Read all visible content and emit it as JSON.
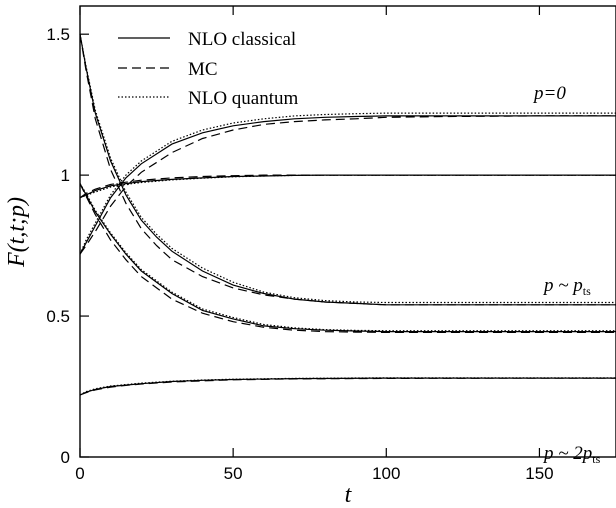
{
  "chart_data": {
    "type": "line",
    "title": "",
    "xlabel": "t",
    "ylabel": "F(t,t;p)",
    "xlim": [
      0,
      175
    ],
    "ylim": [
      0,
      1.6
    ],
    "x_ticks": [
      0,
      50,
      100,
      150
    ],
    "y_ticks": [
      0,
      0.5,
      1,
      1.5
    ],
    "x_tick_labels": [
      "0",
      "50",
      "100",
      "150"
    ],
    "y_tick_labels": [
      "0",
      "0.5",
      "1",
      "1.5"
    ],
    "legend_position": "top-left",
    "legend": [
      {
        "label": "NLO classical",
        "style": "solid"
      },
      {
        "label": "MC",
        "style": "dashed"
      },
      {
        "label": "NLO quantum",
        "style": "dotted"
      }
    ],
    "annotations": [
      {
        "text": "p=0",
        "x": 165,
        "y": 1.28
      },
      {
        "text": "p ~ p",
        "subscript": "ts",
        "x": 160,
        "y": 0.6
      },
      {
        "text": "p ~ 2p",
        "subscript": "ts",
        "x": 160,
        "y": 0.16
      }
    ],
    "series": [
      {
        "name": "NLO classical",
        "style": "solid",
        "curves": [
          {
            "x": [
              0,
              2,
              5,
              10,
              15,
              20,
              30,
              40,
              50,
              60,
              70,
              80,
              90,
              100,
              120,
              150,
              175
            ],
            "y": [
              0.72,
              0.76,
              0.82,
              0.92,
              0.99,
              1.04,
              1.11,
              1.15,
              1.175,
              1.19,
              1.2,
              1.205,
              1.208,
              1.21,
              1.21,
              1.21,
              1.21
            ]
          },
          {
            "x": [
              0,
              2,
              5,
              10,
              15,
              20,
              30,
              40,
              50,
              60,
              70,
              80,
              100,
              120,
              150,
              175
            ],
            "y": [
              0.92,
              0.93,
              0.945,
              0.962,
              0.97,
              0.977,
              0.985,
              0.99,
              0.995,
              0.997,
              0.999,
              1.0,
              1.0,
              1.0,
              1.0,
              1.0
            ]
          },
          {
            "x": [
              0,
              2,
              5,
              10,
              15,
              20,
              25,
              30,
              40,
              50,
              60,
              70,
              80,
              90,
              100,
              120,
              150,
              175
            ],
            "y": [
              1.5,
              1.38,
              1.22,
              1.05,
              0.93,
              0.84,
              0.78,
              0.73,
              0.66,
              0.61,
              0.58,
              0.56,
              0.55,
              0.545,
              0.54,
              0.54,
              0.54,
              0.54
            ]
          },
          {
            "x": [
              0,
              2,
              5,
              10,
              15,
              20,
              30,
              40,
              50,
              60,
              70,
              80,
              90,
              100,
              120,
              150,
              175
            ],
            "y": [
              0.97,
              0.93,
              0.87,
              0.79,
              0.72,
              0.66,
              0.58,
              0.52,
              0.49,
              0.465,
              0.455,
              0.45,
              0.447,
              0.445,
              0.445,
              0.445,
              0.445
            ]
          },
          {
            "x": [
              0,
              2,
              5,
              10,
              15,
              20,
              30,
              40,
              50,
              70,
              100,
              150,
              175
            ],
            "y": [
              0.22,
              0.23,
              0.24,
              0.25,
              0.255,
              0.26,
              0.268,
              0.272,
              0.275,
              0.278,
              0.28,
              0.28,
              0.28
            ]
          }
        ]
      },
      {
        "name": "MC",
        "style": "dashed",
        "curves": [
          {
            "x": [
              0,
              2,
              5,
              10,
              15,
              20,
              30,
              40,
              50,
              60,
              70,
              80,
              90,
              100,
              120,
              150,
              175
            ],
            "y": [
              0.72,
              0.75,
              0.8,
              0.89,
              0.96,
              1.01,
              1.08,
              1.13,
              1.16,
              1.18,
              1.19,
              1.196,
              1.2,
              1.205,
              1.208,
              1.21,
              1.21
            ]
          },
          {
            "x": [
              0,
              2,
              5,
              10,
              15,
              20,
              30,
              40,
              50,
              60,
              70,
              80,
              100,
              120,
              150,
              175
            ],
            "y": [
              0.92,
              0.935,
              0.95,
              0.967,
              0.975,
              0.982,
              0.99,
              0.995,
              0.998,
              1.0,
              1.0,
              1.0,
              1.0,
              1.0,
              1.0,
              1.0
            ]
          },
          {
            "x": [
              0,
              2,
              5,
              10,
              15,
              20,
              25,
              30,
              40,
              50,
              60,
              70,
              80,
              90,
              100,
              120,
              150,
              175
            ],
            "y": [
              1.5,
              1.37,
              1.2,
              1.02,
              0.9,
              0.81,
              0.75,
              0.7,
              0.64,
              0.6,
              0.575,
              0.56,
              0.55,
              0.545,
              0.54,
              0.54,
              0.54,
              0.54
            ]
          },
          {
            "x": [
              0,
              2,
              5,
              10,
              15,
              20,
              30,
              40,
              50,
              60,
              70,
              80,
              90,
              100,
              120,
              150,
              175
            ],
            "y": [
              0.97,
              0.925,
              0.86,
              0.77,
              0.7,
              0.64,
              0.56,
              0.51,
              0.48,
              0.46,
              0.45,
              0.445,
              0.443,
              0.442,
              0.442,
              0.442,
              0.442
            ]
          },
          {
            "x": [
              0,
              2,
              5,
              10,
              15,
              20,
              30,
              40,
              50,
              70,
              100,
              150,
              175
            ],
            "y": [
              0.22,
              0.228,
              0.238,
              0.248,
              0.254,
              0.259,
              0.266,
              0.27,
              0.274,
              0.277,
              0.279,
              0.28,
              0.28
            ]
          }
        ]
      },
      {
        "name": "NLO quantum",
        "style": "dotted",
        "curves": [
          {
            "x": [
              0,
              2,
              5,
              10,
              15,
              20,
              30,
              40,
              50,
              60,
              70,
              80,
              90,
              100,
              120,
              150,
              175
            ],
            "y": [
              0.72,
              0.77,
              0.83,
              0.93,
              1.0,
              1.05,
              1.12,
              1.16,
              1.185,
              1.2,
              1.21,
              1.215,
              1.218,
              1.22,
              1.22,
              1.22,
              1.22
            ]
          },
          {
            "x": [
              0,
              2,
              5,
              10,
              15,
              20,
              30,
              40,
              50,
              60,
              70,
              80,
              100,
              120,
              150,
              175
            ],
            "y": [
              0.92,
              0.928,
              0.94,
              0.958,
              0.967,
              0.974,
              0.983,
              0.989,
              0.994,
              0.997,
              0.999,
              1.0,
              1.0,
              1.0,
              1.0,
              1.0
            ]
          },
          {
            "x": [
              0,
              2,
              5,
              10,
              15,
              20,
              25,
              30,
              40,
              50,
              60,
              70,
              80,
              90,
              100,
              120,
              150,
              175
            ],
            "y": [
              1.5,
              1.385,
              1.23,
              1.06,
              0.94,
              0.85,
              0.79,
              0.74,
              0.67,
              0.62,
              0.585,
              0.565,
              0.555,
              0.55,
              0.548,
              0.548,
              0.548,
              0.548
            ]
          },
          {
            "x": [
              0,
              2,
              5,
              10,
              15,
              20,
              30,
              40,
              50,
              60,
              70,
              80,
              90,
              100,
              120,
              150,
              175
            ],
            "y": [
              0.97,
              0.935,
              0.875,
              0.795,
              0.725,
              0.665,
              0.585,
              0.525,
              0.495,
              0.47,
              0.458,
              0.452,
              0.449,
              0.448,
              0.448,
              0.448,
              0.448
            ]
          },
          {
            "x": [
              0,
              2,
              5,
              10,
              15,
              20,
              30,
              40,
              50,
              70,
              100,
              150,
              175
            ],
            "y": [
              0.22,
              0.232,
              0.242,
              0.252,
              0.257,
              0.262,
              0.269,
              0.273,
              0.276,
              0.279,
              0.281,
              0.281,
              0.281
            ]
          }
        ]
      }
    ]
  }
}
